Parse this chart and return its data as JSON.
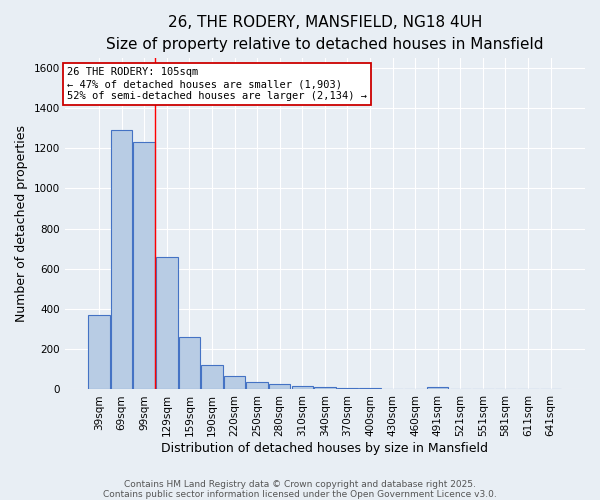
{
  "title": "26, THE RODERY, MANSFIELD, NG18 4UH",
  "subtitle": "Size of property relative to detached houses in Mansfield",
  "xlabel": "Distribution of detached houses by size in Mansfield",
  "ylabel": "Number of detached properties",
  "categories": [
    "39sqm",
    "69sqm",
    "99sqm",
    "129sqm",
    "159sqm",
    "190sqm",
    "220sqm",
    "250sqm",
    "280sqm",
    "310sqm",
    "340sqm",
    "370sqm",
    "400sqm",
    "430sqm",
    "460sqm",
    "491sqm",
    "521sqm",
    "551sqm",
    "581sqm",
    "611sqm",
    "641sqm"
  ],
  "values": [
    370,
    1290,
    1230,
    660,
    260,
    120,
    65,
    38,
    25,
    18,
    10,
    8,
    8,
    0,
    0,
    12,
    0,
    0,
    0,
    0,
    0
  ],
  "bar_color": "#b8cce4",
  "bar_edge_color": "#4472c4",
  "bg_color": "#e8eef4",
  "grid_color": "#ffffff",
  "red_line_x": 2.5,
  "annotation_text": "26 THE RODERY: 105sqm\n← 47% of detached houses are smaller (1,903)\n52% of semi-detached houses are larger (2,134) →",
  "annotation_box_color": "#ffffff",
  "annotation_box_edge": "#cc0000",
  "ylim": [
    0,
    1650
  ],
  "yticks": [
    0,
    200,
    400,
    600,
    800,
    1000,
    1200,
    1400,
    1600
  ],
  "footer_line1": "Contains HM Land Registry data © Crown copyright and database right 2025.",
  "footer_line2": "Contains public sector information licensed under the Open Government Licence v3.0.",
  "title_fontsize": 11,
  "subtitle_fontsize": 9,
  "axis_label_fontsize": 9,
  "tick_fontsize": 7.5,
  "annotation_fontsize": 7.5,
  "footer_fontsize": 6.5
}
